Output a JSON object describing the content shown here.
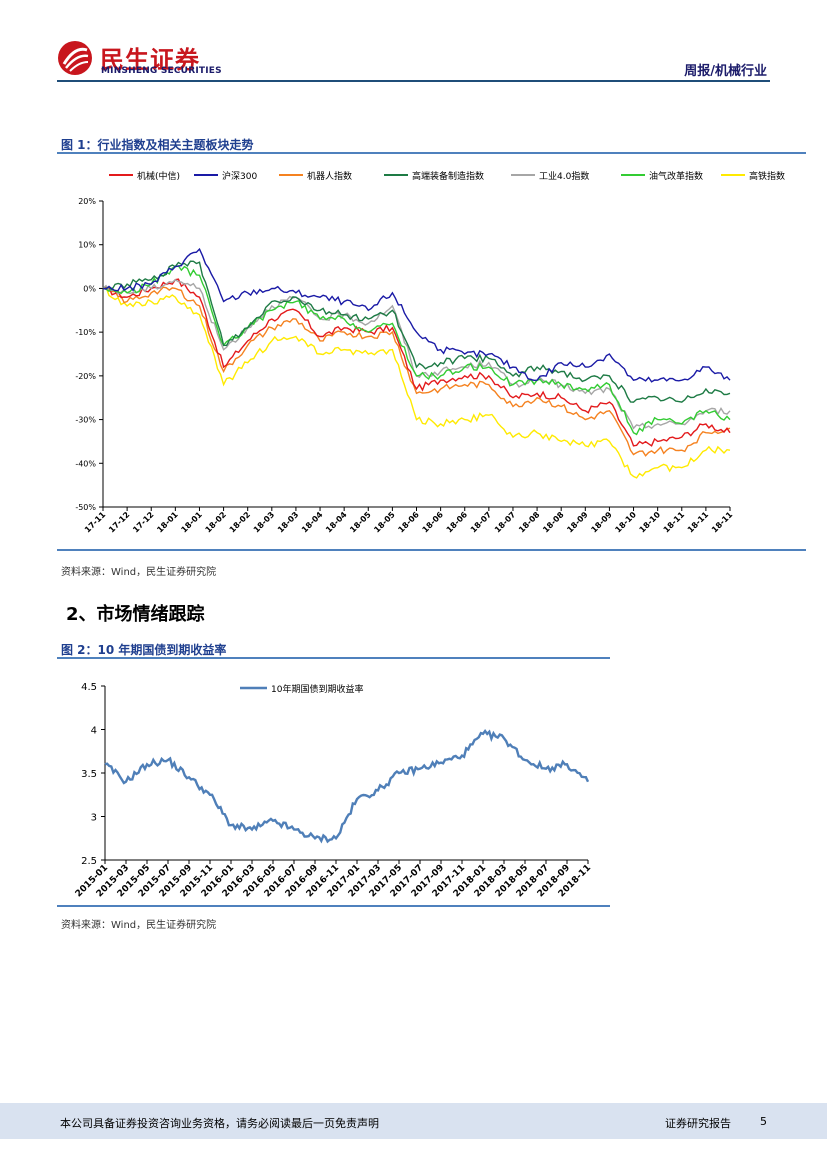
{
  "header": {
    "logo_cn": "民生证券",
    "logo_en": "MINSHENG SECURITIES",
    "report_tag": "周报/机械行业"
  },
  "figure1": {
    "title": "图 1：行业指数及相关主题板块走势",
    "source": "资料来源：Wind，民生证券研究院"
  },
  "section": {
    "title": "2、市场情绪跟踪"
  },
  "figure2": {
    "title": "图 2：10 年期国债到期收益率",
    "source": "资料来源：Wind，民生证券研究院"
  },
  "footer": {
    "disclaimer": "本公司具备证券投资咨询业务资格，请务必阅读最后一页免责声明",
    "report_type": "证券研究报告",
    "page_number": "5"
  },
  "chart_data": [
    {
      "type": "line",
      "title": "图 1：行业指数及相关主题板块走势",
      "xlabel": "",
      "ylabel": "",
      "ylim": [
        -50,
        20
      ],
      "y_ticks": [
        "20%",
        "10%",
        "0%",
        "-10%",
        "-20%",
        "-30%",
        "-40%",
        "-50%"
      ],
      "categories": [
        "17-11",
        "17-12",
        "17-12",
        "18-01",
        "18-01",
        "18-02",
        "18-02",
        "18-03",
        "18-03",
        "18-04",
        "18-04",
        "18-05",
        "18-05",
        "18-06",
        "18-06",
        "18-06",
        "18-07",
        "18-07",
        "18-08",
        "18-08",
        "18-09",
        "18-09",
        "18-10",
        "18-10",
        "18-11",
        "18-11",
        "18-11"
      ],
      "legend_position": "top",
      "series": [
        {
          "name": "机械(中信)",
          "color": "#e31a1c",
          "values": [
            0,
            -2,
            0,
            2,
            -2,
            -18,
            -12,
            -7,
            -5,
            -11,
            -9,
            -10,
            -9,
            -23,
            -21,
            -20,
            -20,
            -25,
            -24,
            -25,
            -28,
            -26,
            -36,
            -35,
            -34,
            -31,
            -33
          ]
        },
        {
          "name": "沪深300",
          "color": "#1a1aa6",
          "values": [
            0,
            0,
            1,
            5,
            9,
            -3,
            -1,
            0,
            -1,
            -2,
            -3,
            -5,
            -1,
            -10,
            -14,
            -15,
            -15,
            -18,
            -21,
            -17,
            -18,
            -15,
            -21,
            -21,
            -21,
            -18,
            -21
          ]
        },
        {
          "name": "机器人指数",
          "color": "#f58220",
          "values": [
            0,
            -3,
            -1,
            0,
            -4,
            -19,
            -13,
            -9,
            -7,
            -12,
            -10,
            -11,
            -10,
            -24,
            -23,
            -22,
            -22,
            -27,
            -25,
            -27,
            -30,
            -28,
            -38,
            -37,
            -37,
            -33,
            -32
          ]
        },
        {
          "name": "高端装备制造指数",
          "color": "#1e7b45",
          "values": [
            0,
            1,
            2,
            5,
            6,
            -13,
            -9,
            -3,
            -2,
            -5,
            -6,
            -7,
            -5,
            -18,
            -17,
            -16,
            -16,
            -20,
            -18,
            -19,
            -21,
            -20,
            -26,
            -25,
            -26,
            -23,
            -24
          ]
        },
        {
          "name": "工业4.0指数",
          "color": "#a6a6a6",
          "values": [
            0,
            -1,
            0,
            2,
            0,
            -14,
            -9,
            -4,
            -2,
            -7,
            -6,
            -8,
            -4,
            -20,
            -19,
            -18,
            -17,
            -22,
            -21,
            -22,
            -24,
            -23,
            -32,
            -31,
            -31,
            -28,
            -28
          ]
        },
        {
          "name": "油气改革指数",
          "color": "#33cc33",
          "values": [
            0,
            -1,
            1,
            5,
            3,
            -13,
            -9,
            -5,
            -3,
            -7,
            -7,
            -10,
            -8,
            -20,
            -20,
            -18,
            -18,
            -22,
            -21,
            -22,
            -23,
            -22,
            -33,
            -30,
            -31,
            -28,
            -30
          ]
        },
        {
          "name": "高铁指数",
          "color": "#ffea00",
          "values": [
            0,
            -4,
            -3,
            -2,
            -6,
            -22,
            -17,
            -12,
            -11,
            -15,
            -14,
            -15,
            -14,
            -30,
            -31,
            -30,
            -29,
            -34,
            -33,
            -35,
            -36,
            -35,
            -43,
            -41,
            -41,
            -37,
            -37
          ]
        }
      ]
    },
    {
      "type": "line",
      "title": "图 2：10 年期国债到期收益率",
      "xlabel": "",
      "ylabel": "",
      "ylim": [
        2.5,
        4.5
      ],
      "y_ticks": [
        "4.5",
        "4",
        "3.5",
        "3",
        "2.5"
      ],
      "categories": [
        "2015-01",
        "2015-03",
        "2015-05",
        "2015-07",
        "2015-09",
        "2015-11",
        "2016-01",
        "2016-03",
        "2016-05",
        "2016-07",
        "2016-09",
        "2016-11",
        "2017-01",
        "2017-03",
        "2017-05",
        "2017-07",
        "2017-09",
        "2017-11",
        "2018-01",
        "2018-03",
        "2018-05",
        "2018-07",
        "2018-09",
        "2018-11"
      ],
      "legend_position": "top",
      "series": [
        {
          "name": "10年期国债到期收益率",
          "color": "#4f7fb8",
          "values": [
            3.6,
            3.4,
            3.6,
            3.65,
            3.45,
            3.25,
            2.9,
            2.85,
            2.95,
            2.85,
            2.75,
            2.75,
            3.2,
            3.3,
            3.5,
            3.55,
            3.62,
            3.7,
            3.95,
            3.9,
            3.65,
            3.55,
            3.6,
            3.4
          ]
        }
      ]
    }
  ]
}
